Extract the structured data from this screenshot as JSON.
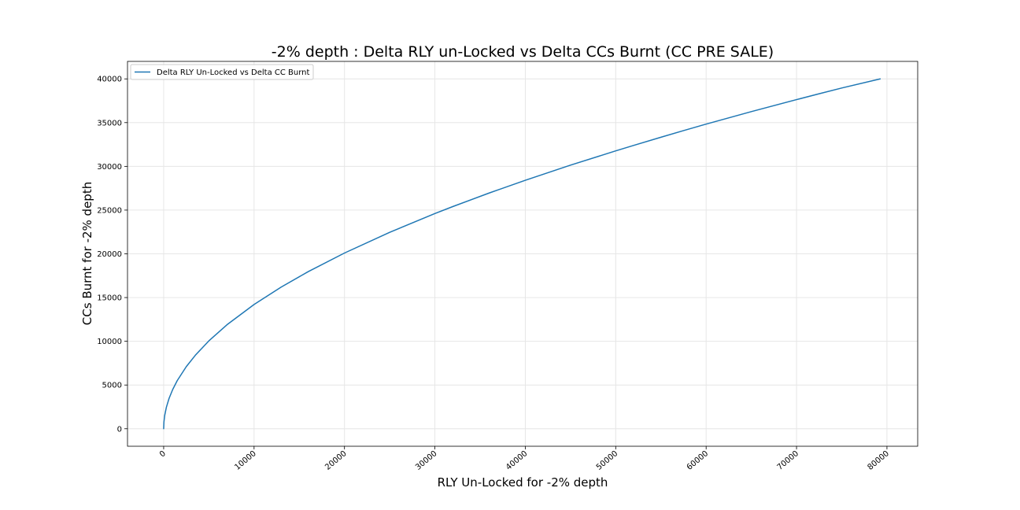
{
  "chart_data": {
    "type": "line",
    "title": "-2% depth : Delta RLY un-Locked vs Delta CCs Burnt (CC PRE SALE)",
    "xlabel": "RLY Un-Locked for -2% depth",
    "ylabel": "CCs Burnt for -2% depth",
    "xlim": [
      -4000,
      83400
    ],
    "ylim": [
      -2000,
      42000
    ],
    "xticks": [
      0,
      10000,
      20000,
      30000,
      40000,
      50000,
      60000,
      70000,
      80000
    ],
    "yticks": [
      0,
      5000,
      10000,
      15000,
      20000,
      25000,
      30000,
      35000,
      40000
    ],
    "grid": true,
    "legend_position": "upper left",
    "series": [
      {
        "name": "Delta RLY Un-Locked vs Delta CC Burnt",
        "color": "#1f77b4",
        "x": [
          0,
          30,
          120,
          300,
          600,
          1000,
          1500,
          2500,
          3500,
          5000,
          7000,
          10000,
          13000,
          16000,
          20000,
          25000,
          30000,
          32000,
          36000,
          40000,
          45000,
          50000,
          52000,
          55000,
          57500,
          60000,
          65000,
          70000,
          72500,
          75000,
          79250
        ],
        "y": [
          0,
          780,
          1550,
          2460,
          3480,
          4490,
          5500,
          7100,
          8400,
          10050,
          11890,
          14210,
          16200,
          17970,
          20090,
          22460,
          24610,
          25410,
          26950,
          28410,
          30140,
          31770,
          32400,
          33330,
          34090,
          34830,
          36260,
          37630,
          38300,
          38960,
          40000
        ]
      }
    ]
  }
}
